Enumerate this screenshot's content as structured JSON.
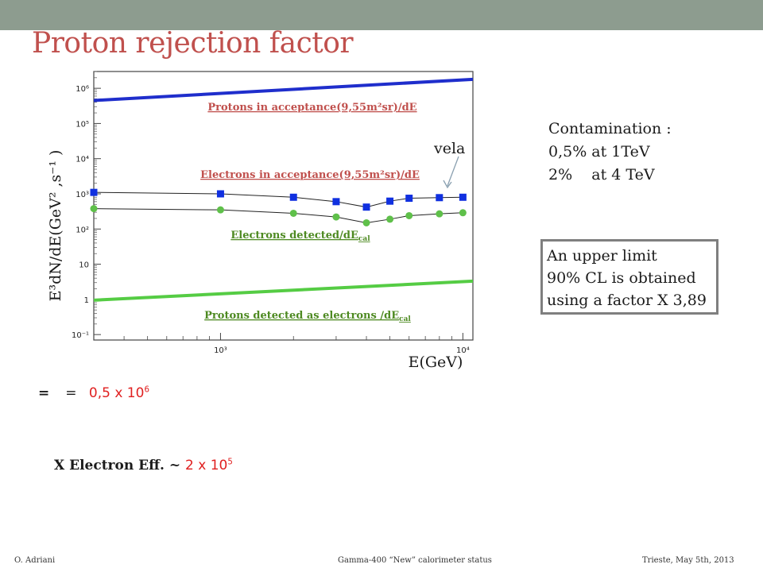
{
  "slide": {
    "title": "Proton  rejection factor",
    "contamination": {
      "heading": "Contamination :",
      "line1": "0,5% at 1TeV",
      "line2": "2%    at 4 TeV"
    },
    "upper_limit": {
      "line1": "An upper limit",
      "line2": "90% CL  is obtained",
      "line3": "using  a factor  X 3,89"
    },
    "formula": {
      "eq1": "=",
      "eq2": "=",
      "value_mantissa": "0,5 x 10",
      "value_exponent": "6"
    },
    "efficiency": {
      "label": "X Electron Eff. ~",
      "value_mantissa": "2 x 10",
      "value_exponent": "5"
    },
    "footer": {
      "author": "O. Adriani",
      "talk": "Gamma-400 “New” calorimeter status",
      "place_date": "Trieste, May 5th, 2013"
    }
  },
  "colors": {
    "title": "#c0504d",
    "topbar": "#8d9c8f",
    "proton_line": "#1f2ecc",
    "proton_detected_line": "#55cc44",
    "electron_square": "#1030e0",
    "electron_detected_dot": "#5fc04a",
    "label_red": "#c0504d",
    "label_green": "#4e8a22"
  },
  "chart_data": {
    "type": "line",
    "ylabel": "E³dN/dE(GeV² ,s⁻¹ )",
    "xlabel": "E(GeV)",
    "xscale": "log",
    "yscale": "log",
    "xlim": [
      300,
      11000
    ],
    "ylim": [
      0.07,
      3000000
    ],
    "x_tick_labels": [
      "10³",
      "10⁴"
    ],
    "y_tick_labels": [
      "10⁻¹",
      "1",
      "10",
      "10²",
      "10³",
      "10⁴",
      "10⁵",
      "10⁶"
    ],
    "series": [
      {
        "name": "Protons in acceptance(9,55m²sr)/dE",
        "style": "line",
        "color": "#1f2ecc",
        "x": [
          300,
          11000
        ],
        "y": [
          450000,
          1800000
        ]
      },
      {
        "name": "Electrons in acceptance(9,55m²sr)/dE",
        "style": "squares",
        "color": "#1030e0",
        "x": [
          300,
          1000,
          2000,
          3000,
          4000,
          5000,
          6000,
          8000,
          10000
        ],
        "y": [
          1100,
          1000,
          800,
          600,
          420,
          620,
          750,
          780,
          800
        ]
      },
      {
        "name": "Electrons detected/dE",
        "name_sub": "cal",
        "style": "dots",
        "color": "#5fc04a",
        "x": [
          300,
          1000,
          2000,
          3000,
          4000,
          5000,
          6000,
          8000,
          10000
        ],
        "y": [
          380,
          350,
          280,
          220,
          150,
          190,
          240,
          270,
          290
        ]
      },
      {
        "name": "Protons detected as electrons /dE",
        "name_sub": "cal",
        "style": "line",
        "color": "#55cc44",
        "x": [
          300,
          11000
        ],
        "y": [
          0.95,
          3.3
        ]
      }
    ],
    "annotations": [
      "vela"
    ]
  }
}
